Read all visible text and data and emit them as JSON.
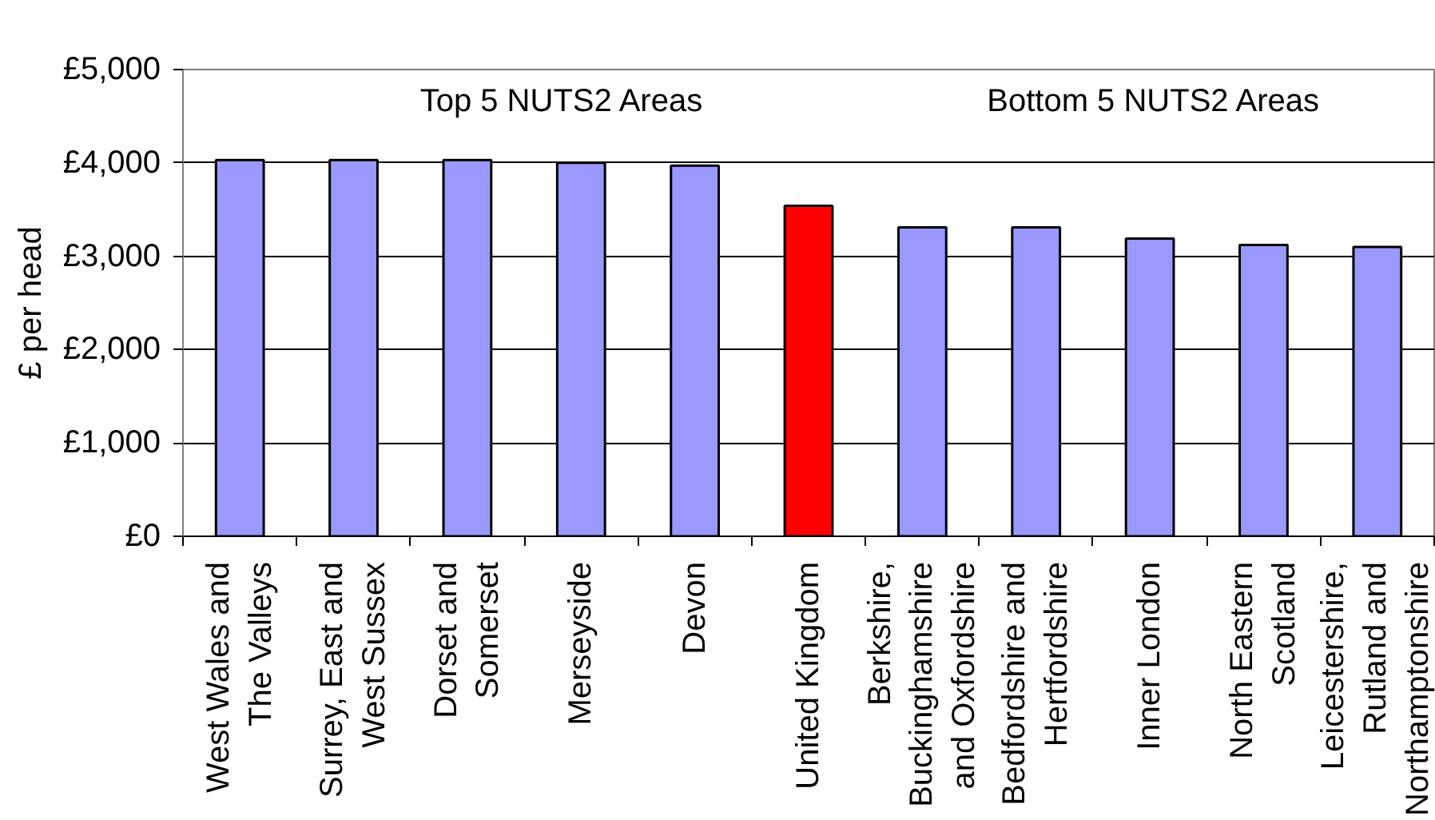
{
  "chart_data": {
    "type": "bar",
    "ylabel": "£ per head",
    "categories": [
      "West Wales and The Valleys",
      "Surrey, East and West Sussex",
      "Dorset and Somerset",
      "Merseyside",
      "Devon",
      "United Kingdom",
      "Berkshire, Buckinghamshire and Oxfordshire",
      "Bedfordshire and Hertfordshire",
      "Inner London",
      "North Eastern Scotland",
      "Leicestershire, Rutland and Northamptonshire"
    ],
    "values": [
      4030,
      4030,
      4030,
      4000,
      3970,
      3540,
      3310,
      3310,
      3190,
      3120,
      3100
    ],
    "colors": [
      "#9999ff",
      "#9999ff",
      "#9999ff",
      "#9999ff",
      "#9999ff",
      "#ff0000",
      "#9999ff",
      "#9999ff",
      "#9999ff",
      "#9999ff",
      "#9999ff"
    ],
    "ylim": [
      0,
      5000
    ],
    "yticks": [
      {
        "value": 0,
        "label": "£0"
      },
      {
        "value": 1000,
        "label": "£1,000"
      },
      {
        "value": 2000,
        "label": "£2,000"
      },
      {
        "value": 3000,
        "label": "£3,000"
      },
      {
        "value": 4000,
        "label": "£4,000"
      },
      {
        "value": 5000,
        "label": "£5,000"
      }
    ],
    "grid": "y",
    "annotations": [
      "Top 5 NUTS2 Areas",
      "Bottom 5 NUTS2 Areas"
    ]
  }
}
